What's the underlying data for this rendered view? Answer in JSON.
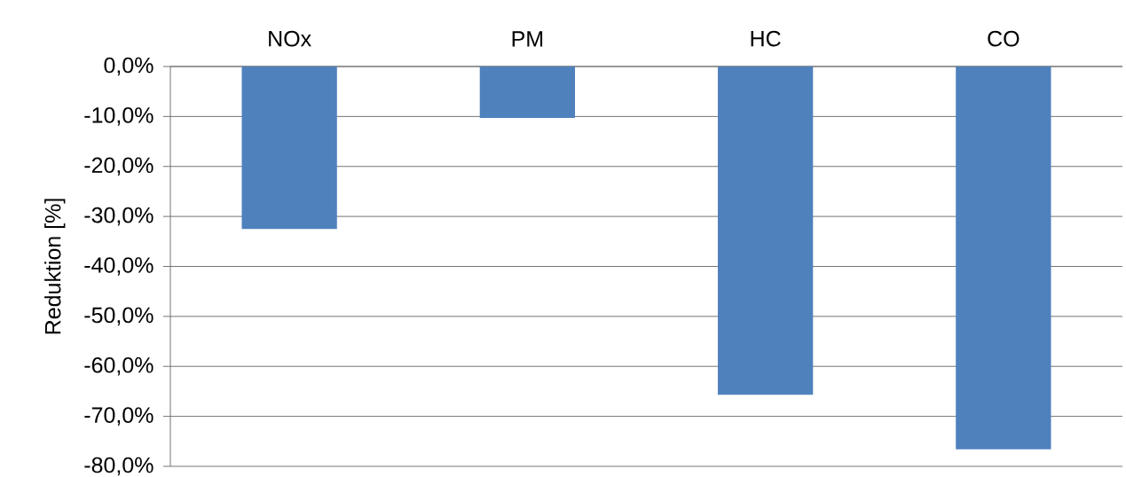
{
  "chart_data": {
    "type": "bar",
    "ylabel": "Reduktion [%]",
    "categories": [
      "NOx",
      "PM",
      "HC",
      "CO"
    ],
    "values": [
      -32.5,
      -10.3,
      -65.7,
      -76.6
    ],
    "color": "#4f81bd",
    "ylim": [
      -80,
      0
    ],
    "yticks": [
      {
        "value": 0,
        "label": "0,0%"
      },
      {
        "value": -10,
        "label": "-10,0%"
      },
      {
        "value": -20,
        "label": "-20,0%"
      },
      {
        "value": -30,
        "label": "-30,0%"
      },
      {
        "value": -40,
        "label": "-40,0%"
      },
      {
        "value": -50,
        "label": "-50,0%"
      },
      {
        "value": -60,
        "label": "-60,0%"
      },
      {
        "value": -70,
        "label": "-70,0%"
      },
      {
        "value": -80,
        "label": "-80,0%"
      }
    ],
    "grid": "y"
  }
}
